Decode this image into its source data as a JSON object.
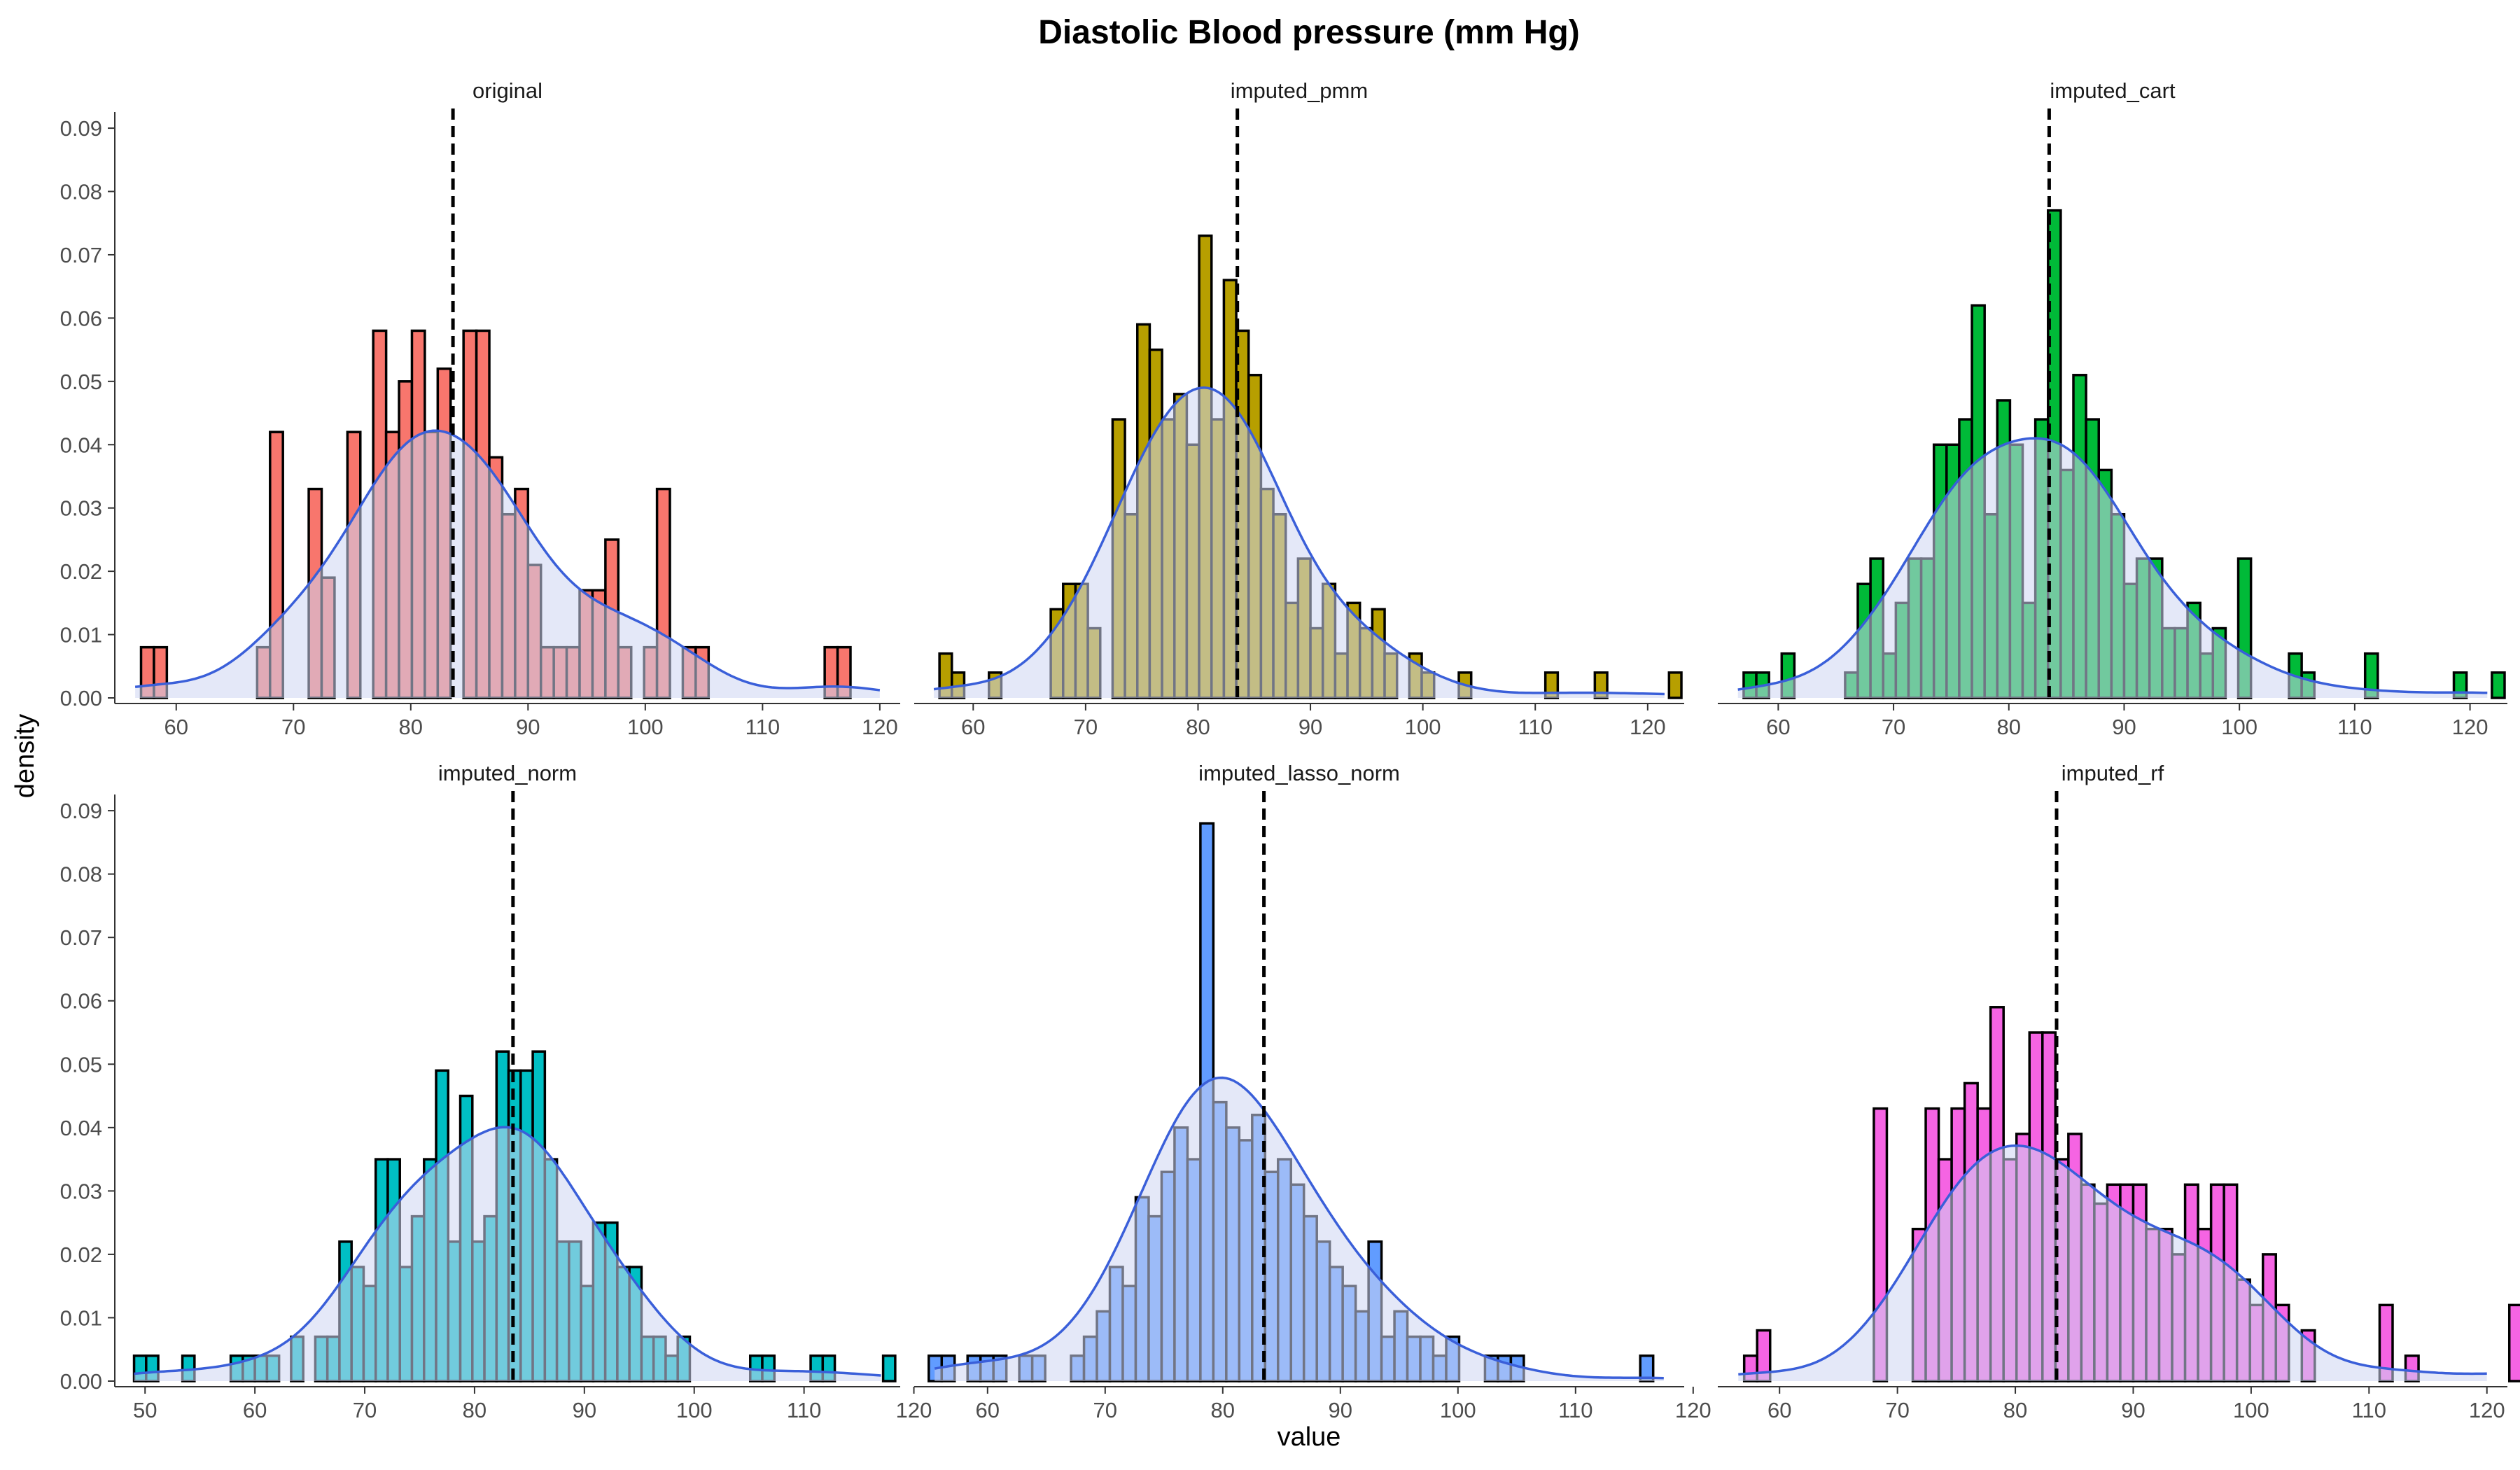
{
  "chart_data": {
    "type": "histogram",
    "title": "Diastolic Blood pressure (mm Hg)",
    "xlabel": "value",
    "ylabel": "density",
    "ylim": [
      0,
      0.092
    ],
    "y_ticks": [
      0.0,
      0.01,
      0.02,
      0.03,
      0.04,
      0.05,
      0.06,
      0.07,
      0.08,
      0.09
    ],
    "y_tick_labels": [
      "0.00",
      "0.01",
      "0.02",
      "0.03",
      "0.04",
      "0.05",
      "0.06",
      "0.07",
      "0.08",
      "0.09"
    ],
    "grid": false,
    "density_line_color": "#3a5fd9",
    "density_fill_color": "#cdd6f2",
    "mean_line_style": "dashed",
    "panels": [
      {
        "name": "original",
        "fill_color": "#f8766d",
        "xlim": [
          55,
          121.5
        ],
        "x_ticks": [
          60,
          70,
          80,
          90,
          100,
          110,
          120
        ],
        "bin_start": 57,
        "bin_width": 1.1,
        "heights": [
          0.008,
          0.008,
          0,
          0,
          0,
          0,
          0,
          0,
          0,
          0.008,
          0.042,
          0,
          0,
          0.033,
          0.019,
          0,
          0.042,
          0,
          0.058,
          0.042,
          0.05,
          0.058,
          0.042,
          0.052,
          0,
          0.058,
          0.058,
          0.038,
          0.029,
          0.033,
          0.021,
          0.008,
          0.008,
          0.008,
          0.017,
          0.017,
          0.025,
          0.008,
          0,
          0.008,
          0.033,
          0,
          0.008,
          0.008,
          0,
          0,
          0,
          0,
          0,
          0,
          0,
          0,
          0,
          0.008,
          0.008
        ],
        "mean": 83.6
      },
      {
        "name": "imputed_pmm",
        "fill_color": "#b79f00",
        "xlim": [
          55,
          123
        ],
        "x_ticks": [
          60,
          70,
          80,
          90,
          100,
          110,
          120
        ],
        "bin_start": 57,
        "bin_width": 1.1,
        "heights": [
          0.007,
          0.004,
          0,
          0,
          0.004,
          0,
          0,
          0,
          0,
          0.014,
          0.018,
          0.018,
          0.011,
          0,
          0.044,
          0.029,
          0.059,
          0.055,
          0.044,
          0.048,
          0.04,
          0.073,
          0.044,
          0.066,
          0.058,
          0.051,
          0.033,
          0.029,
          0.015,
          0.022,
          0.011,
          0.018,
          0.007,
          0.015,
          0.011,
          0.014,
          0.007,
          0,
          0.007,
          0.004,
          0,
          0,
          0.004,
          0,
          0,
          0,
          0,
          0,
          0,
          0.004,
          0,
          0,
          0,
          0.004,
          0,
          0,
          0,
          0,
          0,
          0.004
        ],
        "mean": 83.5
      },
      {
        "name": "imputed_cart",
        "fill_color": "#00ba38",
        "xlim": [
          55,
          123
        ],
        "x_ticks": [
          60,
          70,
          80,
          90,
          100,
          110,
          120
        ],
        "bin_start": 57,
        "bin_width": 1.1,
        "heights": [
          0.004,
          0.004,
          0,
          0.007,
          0,
          0,
          0,
          0,
          0.004,
          0.018,
          0.022,
          0.007,
          0.015,
          0.022,
          0.022,
          0.04,
          0.04,
          0.044,
          0.062,
          0.029,
          0.047,
          0.04,
          0.015,
          0.044,
          0.077,
          0.036,
          0.051,
          0.044,
          0.036,
          0.029,
          0.018,
          0.022,
          0.022,
          0.011,
          0.011,
          0.015,
          0.007,
          0.011,
          0,
          0.022,
          0,
          0,
          0,
          0.007,
          0.004,
          0,
          0,
          0,
          0,
          0.007,
          0,
          0,
          0,
          0,
          0,
          0,
          0.004,
          0,
          0,
          0.004
        ],
        "mean": 83.5
      },
      {
        "name": "imputed_norm",
        "fill_color": "#00bfc4",
        "xlim": [
          47.5,
          118.5
        ],
        "x_ticks": [
          50,
          60,
          70,
          80,
          90,
          100,
          110,
          120
        ],
        "bin_start": 49,
        "bin_width": 1.1,
        "heights": [
          0.004,
          0.004,
          0,
          0,
          0.004,
          0,
          0,
          0,
          0.004,
          0.004,
          0.004,
          0.004,
          0,
          0.007,
          0,
          0.007,
          0.007,
          0.022,
          0.018,
          0.015,
          0.035,
          0.035,
          0.018,
          0.026,
          0.035,
          0.049,
          0.022,
          0.045,
          0.022,
          0.026,
          0.052,
          0.049,
          0.049,
          0.052,
          0.035,
          0.022,
          0.022,
          0.015,
          0.025,
          0.025,
          0.018,
          0.018,
          0.007,
          0.007,
          0.004,
          0.007,
          0,
          0,
          0,
          0,
          0,
          0.004,
          0.004,
          0,
          0,
          0,
          0.004,
          0.004,
          0,
          0,
          0,
          0,
          0.004
        ],
        "mean": 83.5
      },
      {
        "name": "imputed_lasso_norm",
        "fill_color": "#619cff",
        "xlim": [
          54,
          119
        ],
        "x_ticks": [
          60,
          70,
          80,
          90,
          100,
          110,
          120
        ],
        "bin_start": 55,
        "bin_width": 1.1,
        "heights": [
          0.004,
          0.004,
          0,
          0.004,
          0.004,
          0.004,
          0,
          0.004,
          0.004,
          0,
          0,
          0.004,
          0.007,
          0.011,
          0.018,
          0.015,
          0.029,
          0.026,
          0.033,
          0.04,
          0.035,
          0.088,
          0.044,
          0.04,
          0.038,
          0.042,
          0.033,
          0.035,
          0.031,
          0.026,
          0.022,
          0.018,
          0.015,
          0.011,
          0.022,
          0.007,
          0.011,
          0.007,
          0.007,
          0.004,
          0.007,
          0,
          0,
          0.004,
          0.004,
          0.004,
          0,
          0,
          0,
          0,
          0,
          0,
          0,
          0,
          0,
          0.004
        ],
        "mean": 83.5
      },
      {
        "name": "imputed_rf",
        "fill_color": "#f564e3",
        "xlim": [
          55,
          121.5
        ],
        "x_ticks": [
          60,
          70,
          80,
          90,
          100,
          110,
          120
        ],
        "bin_start": 57,
        "bin_width": 1.1,
        "heights": [
          0.004,
          0.008,
          0,
          0,
          0,
          0,
          0,
          0,
          0,
          0,
          0.043,
          0,
          0,
          0.024,
          0.043,
          0.035,
          0.043,
          0.047,
          0.043,
          0.059,
          0.035,
          0.039,
          0.055,
          0.055,
          0.035,
          0.039,
          0.031,
          0.028,
          0.031,
          0.031,
          0.031,
          0.024,
          0.024,
          0.02,
          0.031,
          0.024,
          0.031,
          0.031,
          0.016,
          0.012,
          0.02,
          0.012,
          0,
          0.008,
          0,
          0,
          0,
          0,
          0,
          0.012,
          0,
          0.004,
          0,
          0,
          0,
          0,
          0,
          0,
          0,
          0.012
        ],
        "mean": 83.5
      }
    ]
  }
}
